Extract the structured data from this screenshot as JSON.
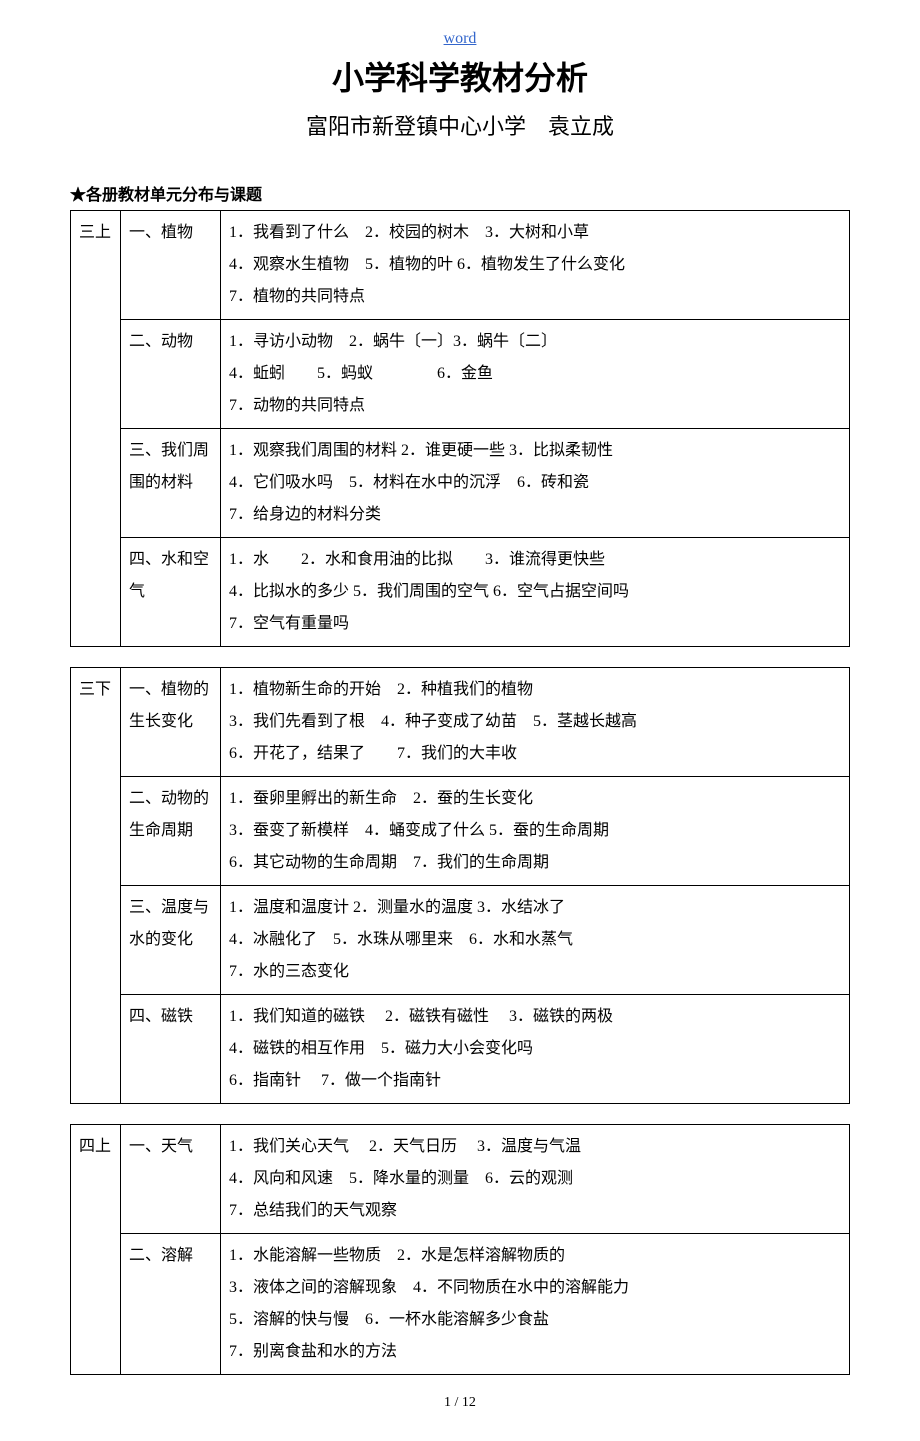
{
  "header": {
    "word_link": "word"
  },
  "title": "小学科学教材分析",
  "subtitle": "富阳市新登镇中心小学　袁立成",
  "section_header": "★各册教材单元分布与课题",
  "tables": [
    {
      "grade": "三上",
      "units": [
        {
          "name": "一、植物",
          "lessons": "1．我看到了什么　2．校园的树木　3．大树和小草\n4．观察水生植物　5．植物的叶 6．植物发生了什么变化\n7．植物的共同特点"
        },
        {
          "name": "二、动物",
          "lessons": "1．寻访小动物　2．蜗牛〔一〕3．蜗牛〔二〕\n4．蚯蚓　　5．蚂蚁　　　　6．金鱼\n7．动物的共同特点"
        },
        {
          "name": "三、我们周围的材料",
          "lessons": "1．观察我们周围的材料 2．谁更硬一些 3．比拟柔韧性\n4．它们吸水吗　5．材料在水中的沉浮　6．砖和瓷\n7．给身边的材料分类"
        },
        {
          "name": "四、水和空气",
          "lessons": "1．水　　2．水和食用油的比拟　　3．谁流得更快些\n4．比拟水的多少 5．我们周围的空气 6．空气占据空间吗\n7．空气有重量吗"
        }
      ]
    },
    {
      "grade": "三下",
      "units": [
        {
          "name": "一、植物的生长变化",
          "lessons": "1．植物新生命的开始　2．种植我们的植物\n3．我们先看到了根　4．种子变成了幼苗　5．茎越长越高\n6．开花了，结果了　　7．我们的大丰收"
        },
        {
          "name": "二、动物的生命周期",
          "lessons": "1．蚕卵里孵出的新生命　2．蚕的生长变化\n3．蚕变了新模样　4．蛹变成了什么 5．蚕的生命周期\n6．其它动物的生命周期　7．我们的生命周期"
        },
        {
          "name": "三、温度与水的变化",
          "lessons": "1．温度和温度计 2．测量水的温度 3．水结冰了\n4．冰融化了　5．水珠从哪里来　6．水和水蒸气\n7．水的三态变化"
        },
        {
          "name": "四、磁铁",
          "lessons": "1．我们知道的磁铁　 2．磁铁有磁性　 3．磁铁的两极\n4．磁铁的相互作用　5．磁力大小会变化吗\n6．指南针　 7．做一个指南针"
        }
      ]
    },
    {
      "grade": "四上",
      "units": [
        {
          "name": "一、天气",
          "lessons": "1．我们关心天气　 2．天气日历　 3．温度与气温\n4．风向和风速　5．降水量的测量　6．云的观测\n7．总结我们的天气观察"
        },
        {
          "name": "二、溶解",
          "lessons": "1．水能溶解一些物质　2．水是怎样溶解物质的\n3．液体之间的溶解现象　4．不同物质在水中的溶解能力\n5．溶解的快与慢　6．一杯水能溶解多少食盐\n7．别离食盐和水的方法"
        }
      ]
    }
  ],
  "footer": "1 / 12"
}
